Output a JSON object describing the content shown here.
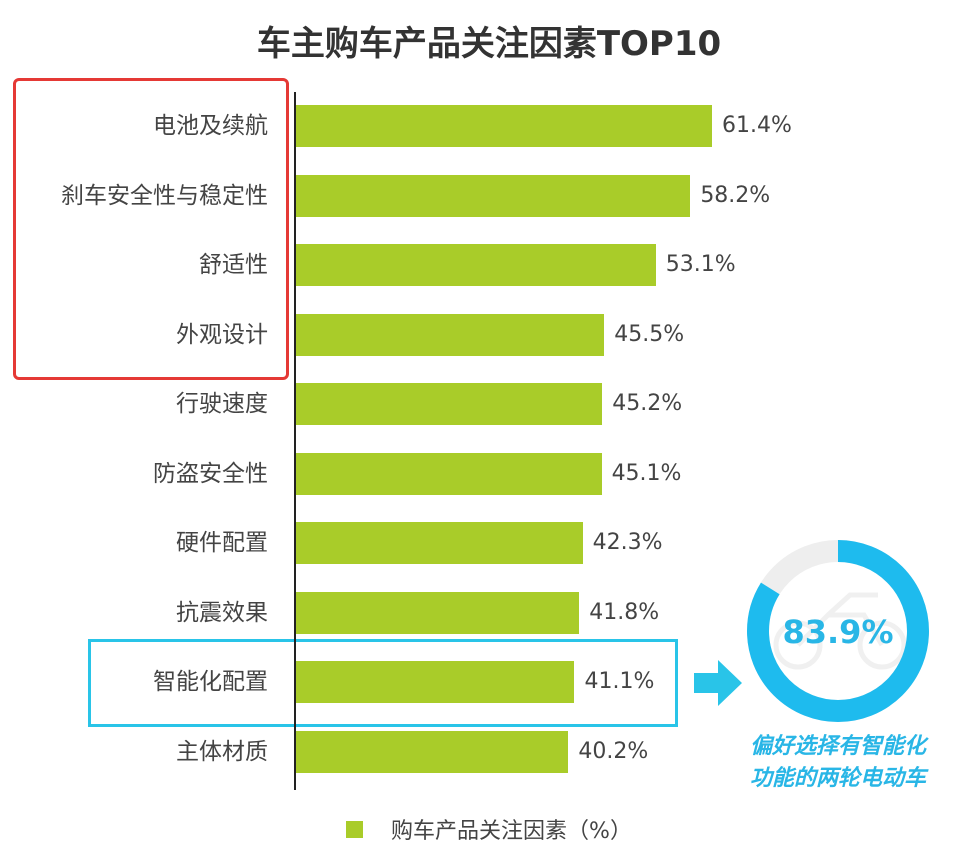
{
  "colors": {
    "bar": "#a9cc29",
    "highlight_red": "#e53935",
    "highlight_blue": "#29c4e8",
    "ring": "#1ebbee",
    "callout_text": "#29b6e6"
  },
  "chart_data": {
    "type": "bar",
    "orientation": "horizontal",
    "title": "车主购车产品关注因素TOP10",
    "categories": [
      "电池及续航",
      "刹车安全性与稳定性",
      "舒适性",
      "外观设计",
      "行驶速度",
      "防盗安全性",
      "硬件配置",
      "抗震效果",
      "智能化配置",
      "主体材质"
    ],
    "series": [
      {
        "name": "购车产品关注因素（%）",
        "values": [
          61.4,
          58.2,
          53.1,
          45.5,
          45.2,
          45.1,
          42.3,
          41.8,
          41.1,
          40.2
        ],
        "labels": [
          "61.4%",
          "58.2%",
          "53.1%",
          "45.5%",
          "45.2%",
          "45.1%",
          "42.3%",
          "41.8%",
          "41.1%",
          "40.2%"
        ]
      }
    ],
    "xlim": [
      0,
      70
    ],
    "grid": false,
    "legend": "bottom",
    "callout": {
      "value": 83.9,
      "label": "83.9%",
      "lines": [
        "偏好选择有智能化",
        "功能的两轮电动车"
      ]
    }
  }
}
